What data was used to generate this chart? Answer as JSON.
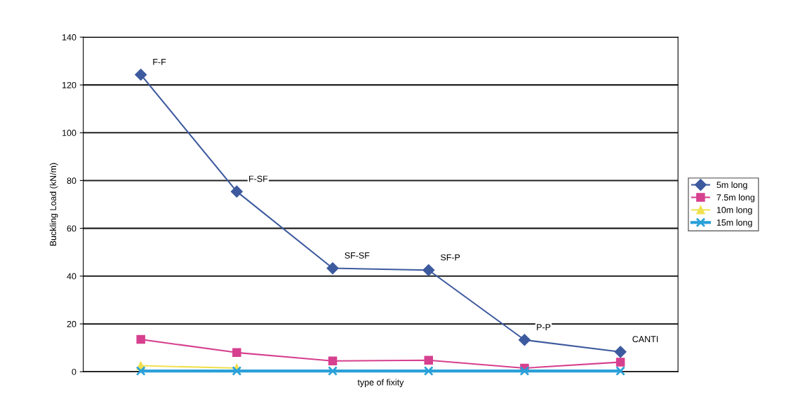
{
  "chart_data": {
    "type": "line",
    "xlabel": "type of fixity",
    "ylabel": "Buckling Load (kN/m)",
    "categories": [
      null,
      null,
      null,
      null,
      null,
      null
    ],
    "series": [
      {
        "name": "5m long",
        "color": "#3d5a9e",
        "marker": "diamond",
        "values": [
          124.3,
          75.4,
          43.3,
          42.5,
          13.3,
          8.3
        ],
        "value_labels": [
          "F-F",
          "F-SF",
          "SF-SF",
          "SF-P",
          "P-P",
          "CANTI"
        ]
      },
      {
        "name": "7.5m long",
        "color": "#d6408f",
        "marker": "square",
        "values": [
          13.5,
          8,
          4.5,
          4.8,
          1.5,
          4
        ]
      },
      {
        "name": "10m long",
        "color": "#f0e050",
        "marker": "triangle",
        "values": [
          2.5,
          1.5,
          null,
          null,
          null,
          null
        ]
      },
      {
        "name": "15m long",
        "color": "#2aa0d8",
        "marker": "cross",
        "values": [
          0.3,
          0.3,
          0.3,
          0.3,
          0.3,
          0.3
        ]
      }
    ],
    "ylim": [
      0,
      140
    ],
    "yticks": [
      0,
      20,
      40,
      60,
      80,
      100,
      120,
      140
    ],
    "grid": "y",
    "legend": "right"
  }
}
